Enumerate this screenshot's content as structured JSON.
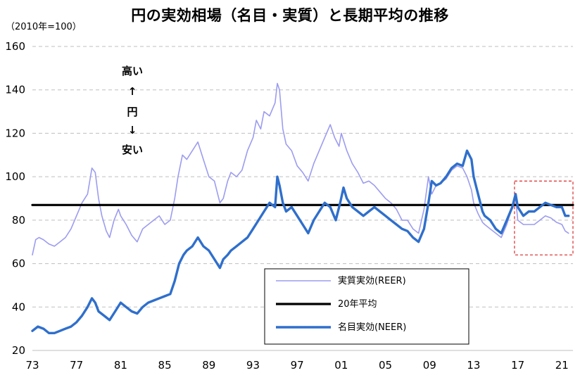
{
  "title": "円の実効相場（名目・実質）と長期平均の推移",
  "colors": {
    "reer": "#9c9cf0",
    "neer": "#2f6fcc",
    "avg": "#000000",
    "highlight": "#e03a3a",
    "grid": "#bfbfbf"
  },
  "chart_data": {
    "type": "line",
    "unit_label": "（2010年=100）",
    "ylim": [
      20,
      160
    ],
    "yticks": [
      "20",
      "40",
      "60",
      "80",
      "100",
      "120",
      "140",
      "160"
    ],
    "xlim": [
      1973,
      2022
    ],
    "xticks": [
      "73",
      "77",
      "81",
      "85",
      "89",
      "93",
      "97",
      "01",
      "05",
      "09",
      "13",
      "17",
      "21"
    ],
    "grid": "horizontal dashed",
    "annotation": [
      "高い",
      "↑",
      "円",
      "↓",
      "安い"
    ],
    "highlight_range": {
      "x": [
        2016.7,
        2022.0
      ],
      "y": [
        64,
        98
      ]
    },
    "legend": {
      "placement": "bottom-right",
      "items": [
        {
          "key": "reer",
          "label": "実質実効(REER)"
        },
        {
          "key": "avg",
          "label": "20年平均"
        },
        {
          "key": "neer",
          "label": "名目実効(NEER)"
        }
      ]
    },
    "series": [
      {
        "key": "reer",
        "name": "実質実効(REER)",
        "x": [
          1973.0,
          1973.3,
          1973.6,
          1974.0,
          1974.5,
          1975.0,
          1975.5,
          1976.0,
          1976.5,
          1977.0,
          1977.5,
          1978.0,
          1978.4,
          1978.7,
          1979.0,
          1979.3,
          1979.7,
          1980.0,
          1980.4,
          1980.8,
          1981.0,
          1981.5,
          1982.0,
          1982.5,
          1983.0,
          1983.5,
          1984.0,
          1984.5,
          1985.0,
          1985.5,
          1985.9,
          1986.2,
          1986.6,
          1987.0,
          1987.5,
          1988.0,
          1988.5,
          1989.0,
          1989.5,
          1990.0,
          1990.3,
          1990.7,
          1991.0,
          1991.5,
          1992.0,
          1992.5,
          1993.0,
          1993.3,
          1993.7,
          1994.0,
          1994.5,
          1995.0,
          1995.2,
          1995.4,
          1995.7,
          1996.0,
          1996.5,
          1997.0,
          1997.5,
          1998.0,
          1998.5,
          1999.0,
          1999.5,
          2000.0,
          2000.4,
          2000.8,
          2001.0,
          2001.5,
          2002.0,
          2002.5,
          2003.0,
          2003.5,
          2004.0,
          2004.5,
          2005.0,
          2005.5,
          2006.0,
          2006.5,
          2007.0,
          2007.5,
          2008.0,
          2008.5,
          2008.9,
          2009.2,
          2009.6,
          2010.0,
          2010.5,
          2011.0,
          2011.5,
          2012.0,
          2012.4,
          2012.8,
          2013.0,
          2013.4,
          2013.8,
          2014.0,
          2014.5,
          2015.0,
          2015.5,
          2016.0,
          2016.5,
          2016.8,
          2017.0,
          2017.5,
          2018.0,
          2018.5,
          2019.0,
          2019.5,
          2020.0,
          2020.5,
          2021.0,
          2021.3,
          2021.6
        ],
        "y": [
          64,
          71,
          72,
          71,
          69,
          68,
          70,
          72,
          76,
          82,
          88,
          92,
          104,
          102,
          90,
          82,
          75,
          72,
          80,
          85,
          82,
          78,
          73,
          70,
          76,
          78,
          80,
          82,
          78,
          80,
          90,
          100,
          110,
          108,
          112,
          116,
          108,
          100,
          98,
          88,
          90,
          98,
          102,
          100,
          103,
          112,
          118,
          126,
          122,
          130,
          128,
          134,
          143,
          140,
          122,
          115,
          112,
          105,
          102,
          98,
          106,
          112,
          118,
          124,
          118,
          114,
          120,
          112,
          106,
          102,
          97,
          98,
          96,
          93,
          90,
          88,
          85,
          80,
          80,
          76,
          74,
          85,
          100,
          92,
          96,
          97,
          99,
          103,
          105,
          104,
          100,
          94,
          88,
          83,
          79,
          78,
          76,
          74,
          72,
          78,
          86,
          90,
          80,
          78,
          78,
          78,
          80,
          82,
          81,
          79,
          78,
          75,
          74
        ]
      },
      {
        "key": "avg",
        "name": "20年平均",
        "x": [
          1973.0,
          2022.0
        ],
        "y": [
          87,
          87
        ]
      },
      {
        "key": "neer",
        "name": "名目実効(NEER)",
        "x": [
          1973.0,
          1973.5,
          1974.0,
          1974.5,
          1975.0,
          1975.5,
          1976.0,
          1976.5,
          1977.0,
          1977.5,
          1978.0,
          1978.4,
          1978.7,
          1979.0,
          1979.5,
          1980.0,
          1980.5,
          1981.0,
          1981.5,
          1982.0,
          1982.5,
          1983.0,
          1983.5,
          1984.0,
          1984.5,
          1985.0,
          1985.5,
          1985.9,
          1986.3,
          1986.7,
          1987.0,
          1987.5,
          1988.0,
          1988.5,
          1989.0,
          1989.5,
          1990.0,
          1990.3,
          1990.7,
          1991.0,
          1991.5,
          1992.0,
          1992.5,
          1993.0,
          1993.5,
          1994.0,
          1994.5,
          1995.0,
          1995.2,
          1995.4,
          1995.7,
          1996.0,
          1996.5,
          1997.0,
          1997.5,
          1998.0,
          1998.5,
          1999.0,
          1999.5,
          2000.0,
          2000.5,
          2000.9,
          2001.2,
          2001.5,
          2002.0,
          2002.5,
          2003.0,
          2003.5,
          2004.0,
          2004.5,
          2005.0,
          2005.5,
          2006.0,
          2006.5,
          2007.0,
          2007.5,
          2008.0,
          2008.5,
          2008.9,
          2009.2,
          2009.6,
          2010.0,
          2010.5,
          2011.0,
          2011.5,
          2012.0,
          2012.4,
          2012.8,
          2013.0,
          2013.4,
          2013.8,
          2014.0,
          2014.5,
          2015.0,
          2015.5,
          2016.0,
          2016.5,
          2016.8,
          2017.0,
          2017.5,
          2018.0,
          2018.5,
          2019.0,
          2019.5,
          2020.0,
          2020.5,
          2021.0,
          2021.3,
          2021.6
        ],
        "y": [
          29,
          31,
          30,
          28,
          28,
          29,
          30,
          31,
          33,
          36,
          40,
          44,
          42,
          38,
          36,
          34,
          38,
          42,
          40,
          38,
          37,
          40,
          42,
          43,
          44,
          45,
          46,
          52,
          60,
          64,
          66,
          68,
          72,
          68,
          66,
          62,
          58,
          62,
          64,
          66,
          68,
          70,
          72,
          76,
          80,
          84,
          88,
          86,
          100,
          96,
          88,
          84,
          86,
          82,
          78,
          74,
          80,
          84,
          88,
          86,
          80,
          88,
          95,
          90,
          86,
          84,
          82,
          84,
          86,
          84,
          82,
          80,
          78,
          76,
          75,
          72,
          70,
          76,
          88,
          98,
          96,
          97,
          100,
          104,
          106,
          105,
          112,
          108,
          100,
          92,
          84,
          82,
          80,
          76,
          74,
          80,
          86,
          92,
          86,
          82,
          84,
          84,
          86,
          88,
          87,
          86,
          86,
          82,
          82
        ]
      }
    ]
  }
}
